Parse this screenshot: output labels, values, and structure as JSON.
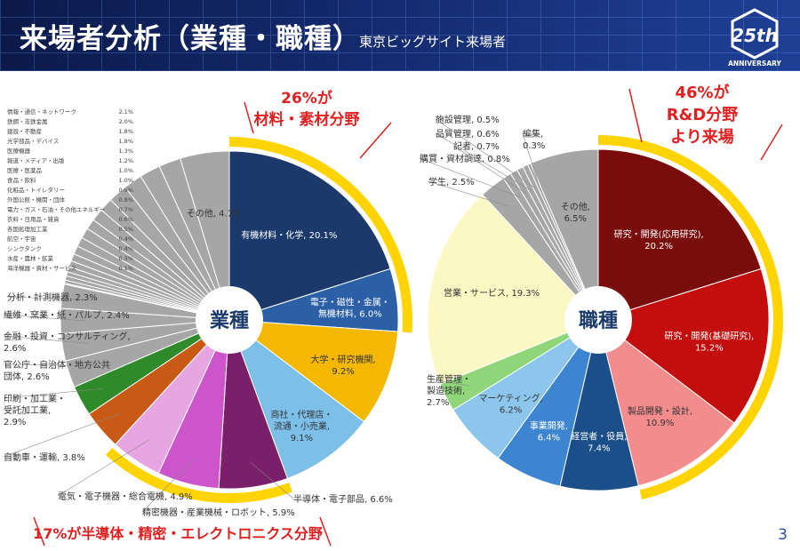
{
  "header": {
    "title": "来場者分析（業種・職種）",
    "subtitle": "東京ビッグサイト来場者",
    "logo_text": "ANNIVERSARY",
    "logo_mark": "25th"
  },
  "page_number": "3",
  "callouts": {
    "left_top": [
      "26%が",
      "材料・素材分野"
    ],
    "left_bottom": "17%が半導体・精密・エレクトロニクス分野",
    "right_top": [
      "46%が",
      "R&D分野",
      "より来場"
    ]
  },
  "colors": {
    "header": "#142a6e",
    "accent_red": "#e02020",
    "highlight_yellow": "#ffd400"
  },
  "chart_data": [
    {
      "type": "pie",
      "center_label": "業種",
      "slices": [
        {
          "label": "有機材料・化学, 20.1%",
          "value": 20.1,
          "color": "#1b3a6b"
        },
        {
          "label": "電子・磁性・金属・無機材料, 6.0%",
          "value": 6.0,
          "color": "#2b5fa6"
        },
        {
          "label": "大学・研究機関, 9.2%",
          "value": 9.2,
          "color": "#f5b800"
        },
        {
          "label": "商社・代理店・流通・小売業, 9.1%",
          "value": 9.1,
          "color": "#7cc0ea"
        },
        {
          "label": "半導体・電子部品, 6.6%",
          "value": 6.6,
          "color": "#7a1f6a"
        },
        {
          "label": "精密機器・産業機械・ロボット, 5.9%",
          "value": 5.9,
          "color": "#cc55cc"
        },
        {
          "label": "電気・電子機器・総合電機, 4.9%",
          "value": 4.9,
          "color": "#e7a6e3"
        },
        {
          "label": "自動車・運輸, 3.8%",
          "value": 3.8,
          "color": "#c85a16"
        },
        {
          "label": "印刷・加工業・受託加工業, 2.9%",
          "value": 2.9,
          "color": "#2f8a2a"
        },
        {
          "label": "官公庁・自治体・地方公共団体, 2.6%",
          "value": 2.6,
          "color": "#a6a6a6"
        },
        {
          "label": "金融・投資・コンサルティング, 2.6%",
          "value": 2.6,
          "color": "#a6a6a6"
        },
        {
          "label": "繊維・窯業・紙・パルプ, 2.4%",
          "value": 2.4,
          "color": "#a6a6a6"
        },
        {
          "label": "分析・計測機器, 2.3%",
          "value": 2.3,
          "color": "#a6a6a6"
        },
        {
          "label": "海洋機器・資材・サービス",
          "value": 0.1,
          "color": "#a6a6a6"
        },
        {
          "label": "水産・農林・鉱業",
          "value": 0.3,
          "color": "#a6a6a6"
        },
        {
          "label": "シンクタンク",
          "value": 0.4,
          "color": "#a6a6a6"
        },
        {
          "label": "航空・宇宙",
          "value": 0.4,
          "color": "#a6a6a6"
        },
        {
          "label": "各国処理加工業",
          "value": 0.5,
          "color": "#a6a6a6"
        },
        {
          "label": "衣料・日用品・雑貨",
          "value": 0.6,
          "color": "#a6a6a6"
        },
        {
          "label": "電力・ガス・石油・その他エネルギー",
          "value": 0.7,
          "color": "#a6a6a6"
        },
        {
          "label": "外国公館・機関・団体",
          "value": 0.8,
          "color": "#a6a6a6"
        },
        {
          "label": "化粧品・トイレタリー",
          "value": 0.9,
          "color": "#a6a6a6"
        },
        {
          "label": "食品・飲料",
          "value": 1.0,
          "color": "#a6a6a6"
        },
        {
          "label": "医療・医薬品",
          "value": 1.0,
          "color": "#a6a6a6"
        },
        {
          "label": "報道・メディア・出版",
          "value": 1.2,
          "color": "#a6a6a6"
        },
        {
          "label": "医療機器",
          "value": 1.3,
          "color": "#a6a6a6"
        },
        {
          "label": "光学部品・デバイス",
          "value": 1.8,
          "color": "#a6a6a6"
        },
        {
          "label": "建設・不動産",
          "value": 1.8,
          "color": "#a6a6a6"
        },
        {
          "label": "鉄鋼・非鉄金属",
          "value": 2.0,
          "color": "#a6a6a6"
        },
        {
          "label": "情報・通信・ネットワーク",
          "value": 2.1,
          "color": "#a6a6a6"
        },
        {
          "label": "その他, 4.7%",
          "value": 4.7,
          "color": "#a6a6a6"
        }
      ],
      "small_list": [
        {
          "name": "情報・通信・ネットワーク",
          "value": "2.1%"
        },
        {
          "name": "鉄鋼・非鉄金属",
          "value": "2.0%"
        },
        {
          "name": "建設・不動産",
          "value": "1.8%"
        },
        {
          "name": "光学部品・デバイス",
          "value": "1.8%"
        },
        {
          "name": "医療機器",
          "value": "1.3%"
        },
        {
          "name": "報道・メディア・出版",
          "value": "1.2%"
        },
        {
          "name": "医療・医薬品",
          "value": "1.0%"
        },
        {
          "name": "食品・飲料",
          "value": "1.0%"
        },
        {
          "name": "化粧品・トイレタリー",
          "value": "0.9%"
        },
        {
          "name": "外国公館・機関・団体",
          "value": "0.8%"
        },
        {
          "name": "電力・ガス・石油・その他エネルギー",
          "value": "0.7%"
        },
        {
          "name": "衣料・日用品・雑貨",
          "value": "0.6%"
        },
        {
          "name": "各国処理加工業",
          "value": "0.5%"
        },
        {
          "name": "航空・宇宙",
          "value": "0.4%"
        },
        {
          "name": "シンクタンク",
          "value": "0.4%"
        },
        {
          "name": "水産・農林・鉱業",
          "value": "0.3%"
        },
        {
          "name": "海洋機器・資材・サービス",
          "value": "0.1%"
        }
      ]
    },
    {
      "type": "pie",
      "center_label": "職種",
      "slices": [
        {
          "label": "研究・開発(応用研究), 20.2%",
          "value": 20.2,
          "color": "#7a0c0c"
        },
        {
          "label": "研究・開発(基礎研究), 15.2%",
          "value": 15.2,
          "color": "#c40e0e"
        },
        {
          "label": "製品開発・設計, 10.9%",
          "value": 10.9,
          "color": "#f38c8c"
        },
        {
          "label": "経営者・役員, 7.4%",
          "value": 7.4,
          "color": "#1b4f8a"
        },
        {
          "label": "事業開発, 6.4%",
          "value": 6.4,
          "color": "#3d85d1"
        },
        {
          "label": "マーケティング, 6.2%",
          "value": 6.2,
          "color": "#8cc6ec"
        },
        {
          "label": "生産管理・製造技術, 2.7%",
          "value": 2.7,
          "color": "#8fd67a"
        },
        {
          "label": "営業・サービス, 19.3%",
          "value": 19.3,
          "color": "#fbf8c4"
        },
        {
          "label": "学生, 2.5%",
          "value": 2.5,
          "color": "#a6a6a6"
        },
        {
          "label": "購買・資材調達, 0.8%",
          "value": 0.8,
          "color": "#a6a6a6"
        },
        {
          "label": "記者, 0.7%",
          "value": 0.7,
          "color": "#a6a6a6"
        },
        {
          "label": "品質管理, 0.6%",
          "value": 0.6,
          "color": "#a6a6a6"
        },
        {
          "label": "施設管理, 0.5%",
          "value": 0.5,
          "color": "#a6a6a6"
        },
        {
          "label": "編集, 0.3%",
          "value": 0.3,
          "color": "#a6a6a6"
        },
        {
          "label": "その他, 6.5%",
          "value": 6.5,
          "color": "#a6a6a6"
        }
      ]
    }
  ]
}
